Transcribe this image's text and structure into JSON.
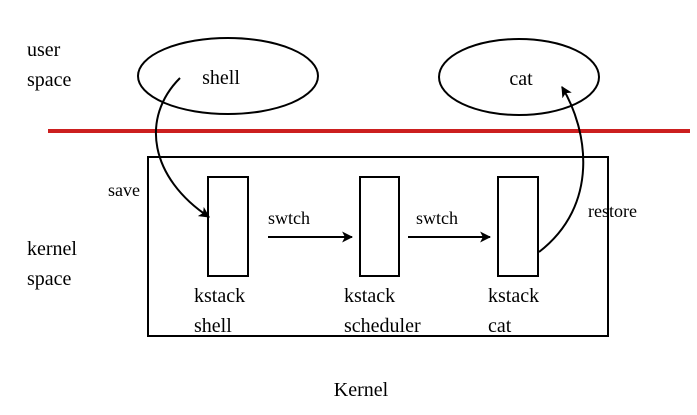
{
  "diagram": {
    "user_space_label": [
      "user",
      "space"
    ],
    "kernel_space_label": [
      "kernel",
      "space"
    ],
    "processes": {
      "shell": "shell",
      "cat": "cat"
    },
    "kernel_stacks": [
      {
        "line1": "kstack",
        "line2": "shell"
      },
      {
        "line1": "kstack",
        "line2": "scheduler"
      },
      {
        "line1": "kstack",
        "line2": "cat"
      }
    ],
    "arrows": {
      "save": "save",
      "switch_1": "swtch",
      "switch_2": "swtch",
      "restore": "restore"
    },
    "caption": "Kernel",
    "colors": {
      "boundary_line": "#cc1f1f",
      "stroke": "#000000",
      "background": "#ffffff"
    }
  }
}
